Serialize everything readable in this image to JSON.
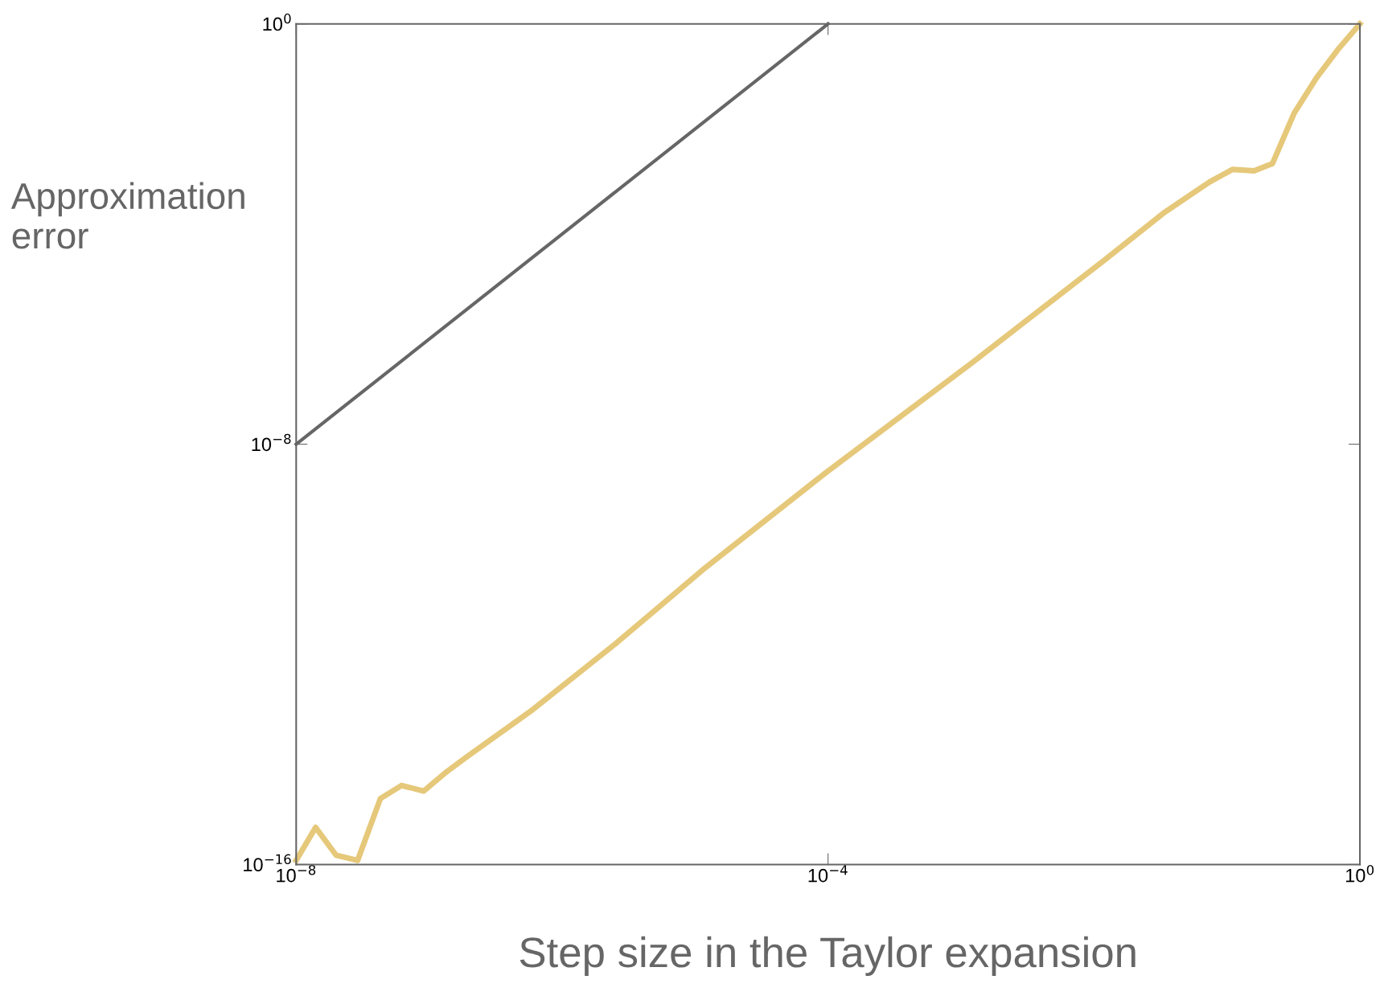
{
  "chart_data": {
    "type": "line",
    "xlabel": "Step size in the Taylor expansion",
    "ylabel": "Approximation\nerror",
    "log": "xy",
    "xlim": [
      1e-08,
      1
    ],
    "ylim": [
      1e-16,
      1
    ],
    "xticks": [
      {
        "value": 1e-08,
        "label": "10$^{−8}$"
      },
      {
        "value": 0.0001,
        "label": "10$^{−4}$"
      },
      {
        "value": 1,
        "label": "10$^{0}$"
      }
    ],
    "yticks": [
      {
        "value": 1e-16,
        "label": "10$^{−16}$"
      },
      {
        "value": 1e-08,
        "label": "10$^{−8}$"
      },
      {
        "value": 1,
        "label": "10$^{0}$"
      }
    ],
    "grid": false,
    "legend": false,
    "series": [
      {
        "color": "#666666",
        "x": [
          1e-08,
          0.0001
        ],
        "values": [
          1e-08,
          1
        ]
      },
      {
        "color": "#e6c87a",
        "x": [
          1e-08,
          1.4e-08,
          2e-08,
          2.9e-08,
          4.3e-08,
          6.2e-08,
          9.1e-08,
          1.35e-07,
          1.9e-07,
          5.8e-07,
          2.6e-06,
          1.2e-05,
          9.5e-05,
          0.0012,
          0.012,
          0.034,
          0.074,
          0.11,
          0.16,
          0.22,
          0.32,
          0.47,
          0.68,
          1
        ],
        "values": [
          1.2e-16,
          5.1e-16,
          1.5e-16,
          1.2e-16,
          1.8e-15,
          3.2e-15,
          2.5e-15,
          5.8e-15,
          1.1e-14,
          8.3e-14,
          1.7e-12,
          4.5e-11,
          2.8e-09,
          3.5e-07,
          3.2e-05,
          0.00026,
          0.00098,
          0.0017,
          0.0016,
          0.0022,
          0.02,
          0.093,
          0.32,
          1.0
        ]
      }
    ]
  }
}
